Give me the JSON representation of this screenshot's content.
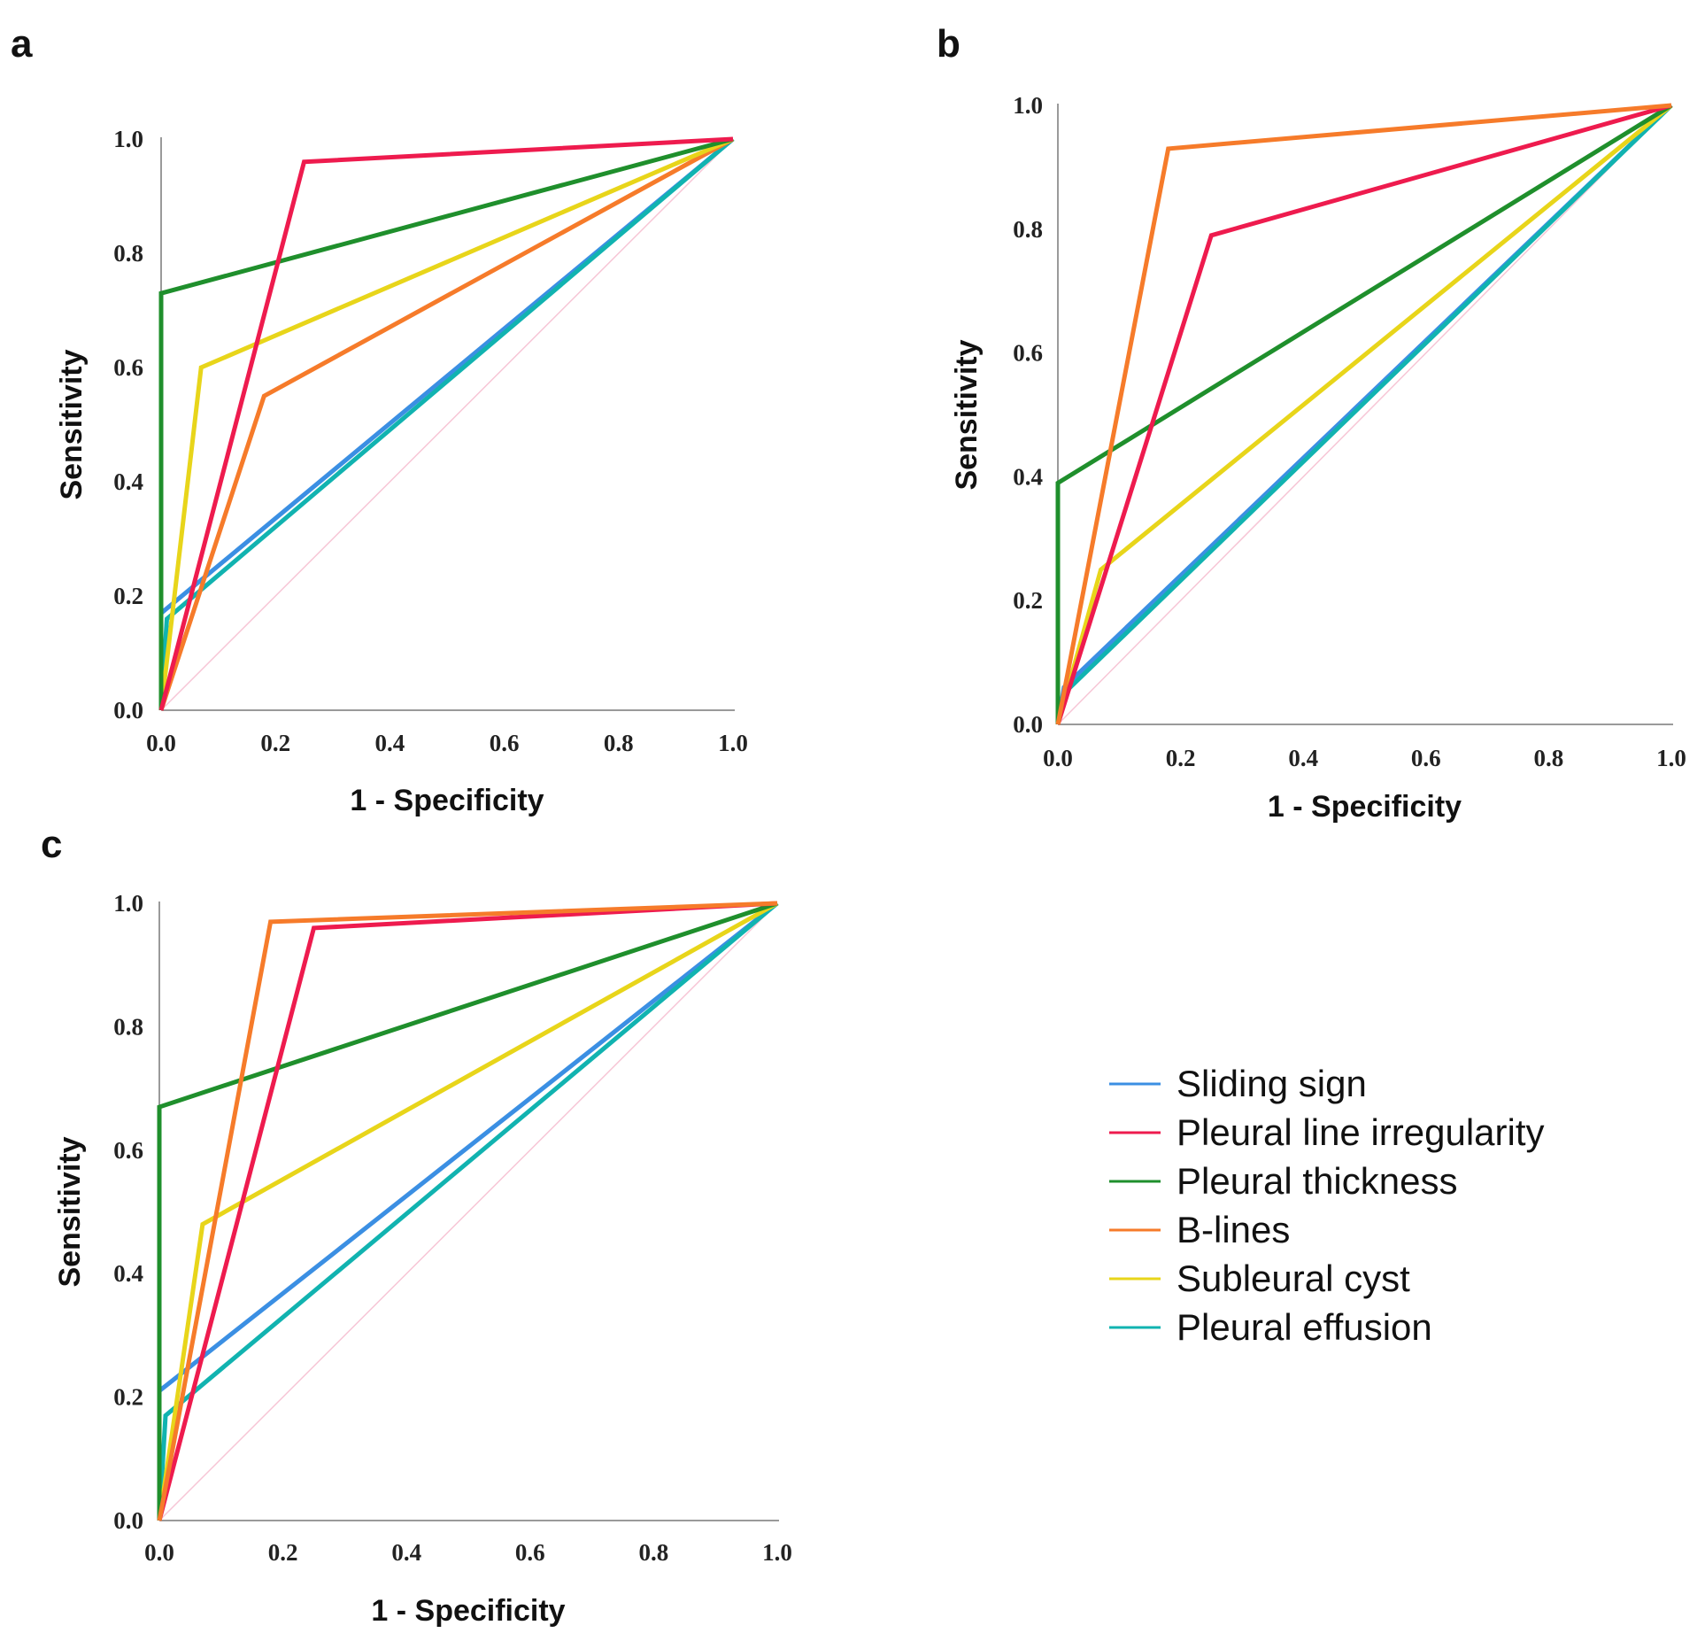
{
  "legend": {
    "items": [
      {
        "label": "Sliding sign",
        "color": "#3b8fe3"
      },
      {
        "label": "Pleural line irregularity",
        "color": "#ee1b4e"
      },
      {
        "label": "Pleural thickness",
        "color": "#1f8f2c"
      },
      {
        "label": "B-lines",
        "color": "#f67b2a"
      },
      {
        "label": "Subleural cyst",
        "color": "#e8d51a"
      },
      {
        "label": "Pleural effusion",
        "color": "#11b3b0"
      }
    ]
  },
  "reference_line_color": "#f7c6d6",
  "chart_data": [
    {
      "panel": "a",
      "type": "line",
      "xlabel": "1 - Specificity",
      "ylabel": "Sensitivity",
      "xlim": [
        0,
        1
      ],
      "ylim": [
        0,
        1
      ],
      "x_ticks": [
        "0.0",
        "0.2",
        "0.4",
        "0.6",
        "0.8",
        "1.0"
      ],
      "y_ticks": [
        "0.0",
        "0.2",
        "0.4",
        "0.6",
        "0.8",
        "1.0"
      ],
      "series": [
        {
          "name": "Sliding sign",
          "x": [
            0,
            0,
            1
          ],
          "y": [
            0,
            0.17,
            1
          ]
        },
        {
          "name": "Pleural effusion",
          "x": [
            0,
            0.01,
            1
          ],
          "y": [
            0,
            0.16,
            1
          ]
        },
        {
          "name": "B-lines",
          "x": [
            0,
            0.18,
            1
          ],
          "y": [
            0,
            0.55,
            1
          ]
        },
        {
          "name": "Subleural cyst",
          "x": [
            0,
            0.07,
            1
          ],
          "y": [
            0,
            0.6,
            1
          ]
        },
        {
          "name": "Pleural thickness",
          "x": [
            0,
            0,
            1
          ],
          "y": [
            0,
            0.73,
            1
          ]
        },
        {
          "name": "Pleural line irregularity",
          "x": [
            0,
            0.25,
            1
          ],
          "y": [
            0,
            0.96,
            1
          ]
        }
      ]
    },
    {
      "panel": "b",
      "type": "line",
      "xlabel": "1 - Specificity",
      "ylabel": "Sensitivity",
      "xlim": [
        0,
        1
      ],
      "ylim": [
        0,
        1
      ],
      "x_ticks": [
        "0.0",
        "0.2",
        "0.4",
        "0.6",
        "0.8",
        "1.0"
      ],
      "y_ticks": [
        "0.0",
        "0.2",
        "0.4",
        "0.6",
        "0.8",
        "1.0"
      ],
      "series": [
        {
          "name": "Sliding sign",
          "x": [
            0,
            0.01,
            1
          ],
          "y": [
            0,
            0.06,
            1
          ]
        },
        {
          "name": "Pleural effusion",
          "x": [
            0,
            0.01,
            1
          ],
          "y": [
            0,
            0.05,
            1
          ]
        },
        {
          "name": "Subleural cyst",
          "x": [
            0,
            0.07,
            1
          ],
          "y": [
            0,
            0.25,
            1
          ]
        },
        {
          "name": "Pleural thickness",
          "x": [
            0,
            0,
            1
          ],
          "y": [
            0,
            0.39,
            1
          ]
        },
        {
          "name": "Pleural line irregularity",
          "x": [
            0,
            0.25,
            1
          ],
          "y": [
            0,
            0.79,
            1
          ]
        },
        {
          "name": "B-lines",
          "x": [
            0,
            0.18,
            1
          ],
          "y": [
            0,
            0.93,
            1
          ]
        }
      ]
    },
    {
      "panel": "c",
      "type": "line",
      "xlabel": "1 - Specificity",
      "ylabel": "Sensitivity",
      "xlim": [
        0,
        1
      ],
      "ylim": [
        0,
        1
      ],
      "x_ticks": [
        "0.0",
        "0.2",
        "0.4",
        "0.6",
        "0.8",
        "1.0"
      ],
      "y_ticks": [
        "0.0",
        "0.2",
        "0.4",
        "0.6",
        "0.8",
        "1.0"
      ],
      "series": [
        {
          "name": "Sliding sign",
          "x": [
            0,
            0,
            1
          ],
          "y": [
            0,
            0.21,
            1
          ]
        },
        {
          "name": "Pleural effusion",
          "x": [
            0,
            0.01,
            1
          ],
          "y": [
            0,
            0.17,
            1
          ]
        },
        {
          "name": "Subleural cyst",
          "x": [
            0,
            0.07,
            1
          ],
          "y": [
            0,
            0.48,
            1
          ]
        },
        {
          "name": "Pleural thickness",
          "x": [
            0,
            0,
            1
          ],
          "y": [
            0,
            0.67,
            1
          ]
        },
        {
          "name": "Pleural line irregularity",
          "x": [
            0,
            0.25,
            1
          ],
          "y": [
            0,
            0.96,
            1
          ]
        },
        {
          "name": "B-lines",
          "x": [
            0,
            0.18,
            1
          ],
          "y": [
            0,
            0.97,
            1
          ]
        }
      ]
    }
  ]
}
